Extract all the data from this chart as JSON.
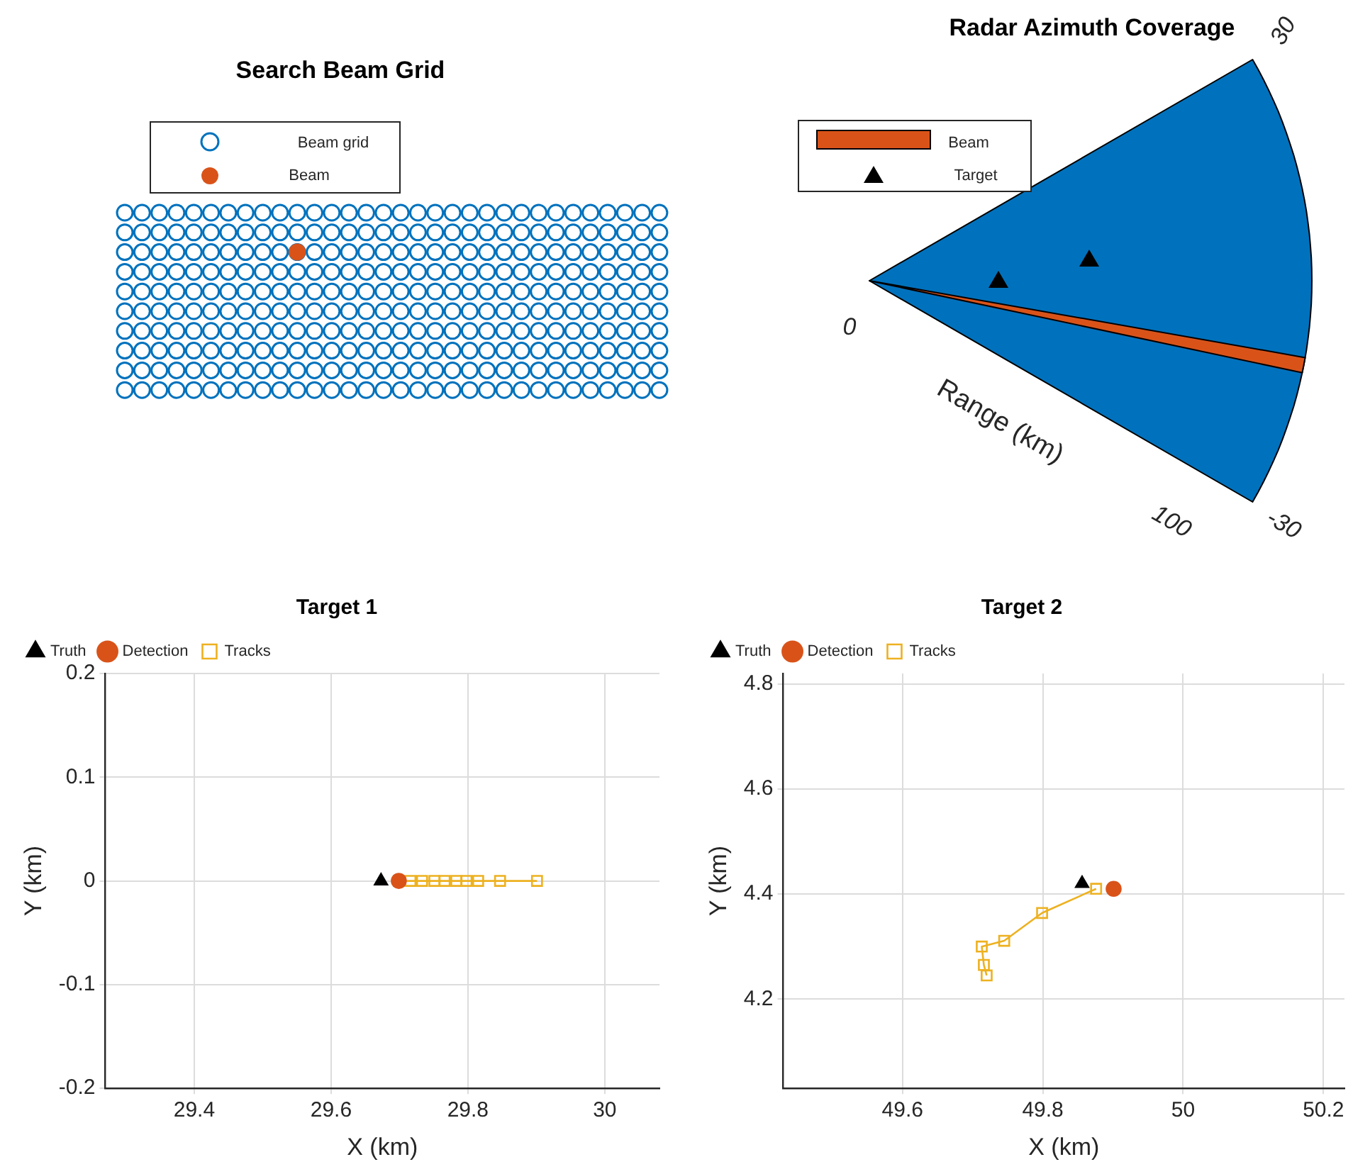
{
  "chart_data": [
    {
      "type": "other",
      "title": "Search Beam Grid",
      "annotations": [
        "Beam grid",
        "Beam"
      ]
    },
    {
      "type": "other",
      "title": "Radar Azimuth Coverage",
      "ylabel": "Range (km)",
      "annotations": [
        "Beam",
        "Target",
        "0",
        "100",
        "30",
        "-30"
      ]
    },
    {
      "type": "scatter",
      "title": "Target 1",
      "xlabel": "X (km)",
      "ylabel": "Y (km)",
      "legend": "top left",
      "grid": true,
      "xlim": [
        29.27,
        30.08
      ],
      "xticks": [
        29.4,
        29.6,
        29.8,
        30
      ],
      "ylim": [
        -0.2,
        0.2
      ],
      "yticks": [
        -0.2,
        -0.1,
        0,
        0.1,
        0.2
      ],
      "series": [
        {
          "name": "Truth",
          "marker": "triangle",
          "color": "#000000",
          "x": [
            29.673
          ],
          "values": [
            0
          ]
        },
        {
          "name": "Detection",
          "marker": "circle",
          "color": "#d95319",
          "x": [
            29.699
          ],
          "values": [
            0
          ]
        },
        {
          "name": "Tracks",
          "type": "line",
          "marker": "square",
          "color": "#edb120",
          "x": [
            29.699,
            29.716,
            29.733,
            29.751,
            29.766,
            29.783,
            29.798,
            29.815,
            29.847,
            29.901
          ],
          "values": [
            0,
            0,
            0,
            0,
            0,
            0,
            0,
            0,
            0,
            0
          ]
        }
      ]
    },
    {
      "type": "scatter",
      "title": "Target 2",
      "xlabel": "X (km)",
      "ylabel": "Y (km)",
      "legend": "top left",
      "grid": true,
      "xlim": [
        49.43,
        50.23
      ],
      "xticks": [
        49.6,
        49.8,
        50,
        50.2
      ],
      "ylim": [
        4.03,
        4.82
      ],
      "yticks": [
        4.2,
        4.4,
        4.6,
        4.8
      ],
      "series": [
        {
          "name": "Truth",
          "marker": "triangle",
          "color": "#000000",
          "x": [
            49.856
          ],
          "values": [
            4.42
          ]
        },
        {
          "name": "Detection",
          "marker": "circle",
          "color": "#d95319",
          "x": [
            49.901
          ],
          "values": [
            4.41
          ]
        },
        {
          "name": "Tracks",
          "type": "line",
          "marker": "square",
          "color": "#edb120",
          "x": [
            49.72,
            49.716,
            49.713,
            49.745,
            49.799,
            49.876
          ],
          "values": [
            4.245,
            4.265,
            4.3,
            4.311,
            4.364,
            4.41
          ]
        }
      ]
    }
  ]
}
